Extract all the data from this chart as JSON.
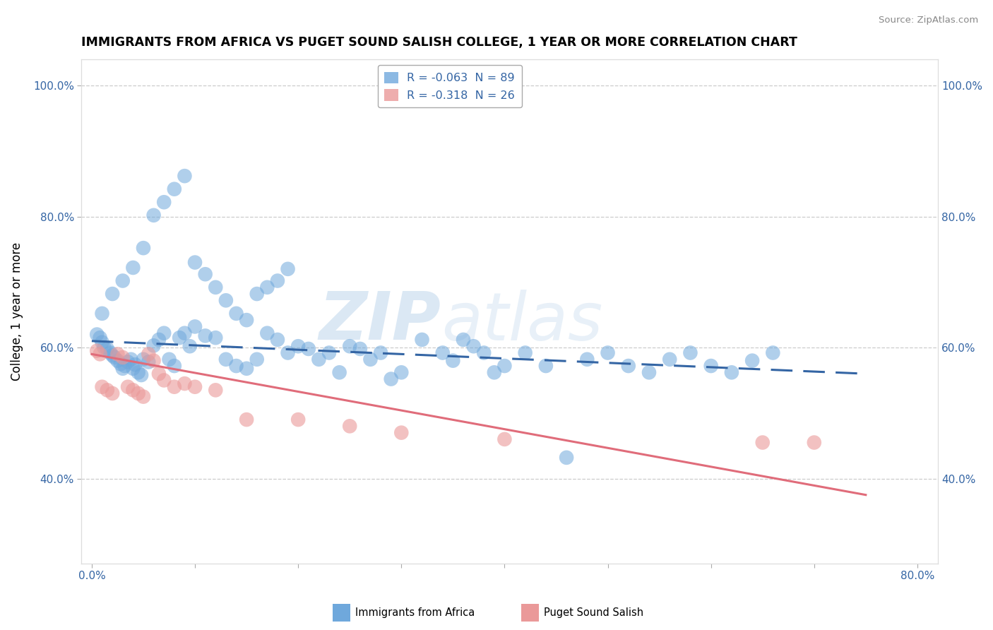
{
  "title": "IMMIGRANTS FROM AFRICA VS PUGET SOUND SALISH COLLEGE, 1 YEAR OR MORE CORRELATION CHART",
  "source": "Source: ZipAtlas.com",
  "ylabel": "College, 1 year or more",
  "xlim": [
    -0.01,
    0.82
  ],
  "ylim": [
    0.27,
    1.04
  ],
  "blue_color": "#6fa8dc",
  "pink_color": "#ea9999",
  "blue_line_color": "#3465a4",
  "pink_line_color": "#e06c7a",
  "legend1_label": "R = -0.063  N = 89",
  "legend2_label": "R = -0.318  N = 26",
  "blue_x": [
    0.005,
    0.008,
    0.01,
    0.012,
    0.015,
    0.018,
    0.02,
    0.022,
    0.025,
    0.028,
    0.03,
    0.032,
    0.035,
    0.038,
    0.04,
    0.042,
    0.045,
    0.048,
    0.05,
    0.055,
    0.06,
    0.065,
    0.07,
    0.075,
    0.08,
    0.085,
    0.09,
    0.095,
    0.1,
    0.11,
    0.12,
    0.13,
    0.14,
    0.15,
    0.16,
    0.17,
    0.18,
    0.19,
    0.2,
    0.21,
    0.22,
    0.23,
    0.24,
    0.25,
    0.26,
    0.27,
    0.28,
    0.29,
    0.3,
    0.32,
    0.34,
    0.35,
    0.36,
    0.37,
    0.38,
    0.39,
    0.4,
    0.42,
    0.44,
    0.46,
    0.48,
    0.5,
    0.52,
    0.54,
    0.56,
    0.58,
    0.6,
    0.62,
    0.64,
    0.66,
    0.01,
    0.02,
    0.03,
    0.04,
    0.05,
    0.06,
    0.07,
    0.08,
    0.09,
    0.1,
    0.11,
    0.12,
    0.13,
    0.14,
    0.15,
    0.16,
    0.17,
    0.18,
    0.19
  ],
  "blue_y": [
    0.62,
    0.615,
    0.608,
    0.6,
    0.598,
    0.592,
    0.588,
    0.585,
    0.58,
    0.575,
    0.568,
    0.572,
    0.578,
    0.582,
    0.568,
    0.574,
    0.562,
    0.558,
    0.582,
    0.578,
    0.603,
    0.612,
    0.622,
    0.582,
    0.572,
    0.615,
    0.622,
    0.602,
    0.632,
    0.618,
    0.615,
    0.582,
    0.572,
    0.568,
    0.582,
    0.622,
    0.612,
    0.592,
    0.602,
    0.598,
    0.582,
    0.592,
    0.562,
    0.602,
    0.598,
    0.582,
    0.592,
    0.552,
    0.562,
    0.612,
    0.592,
    0.58,
    0.612,
    0.602,
    0.592,
    0.562,
    0.572,
    0.592,
    0.572,
    0.432,
    0.582,
    0.592,
    0.572,
    0.562,
    0.582,
    0.592,
    0.572,
    0.562,
    0.58,
    0.592,
    0.652,
    0.682,
    0.702,
    0.722,
    0.752,
    0.802,
    0.822,
    0.842,
    0.862,
    0.73,
    0.712,
    0.692,
    0.672,
    0.652,
    0.642,
    0.682,
    0.692,
    0.702,
    0.72
  ],
  "pink_x": [
    0.005,
    0.008,
    0.01,
    0.015,
    0.02,
    0.025,
    0.03,
    0.035,
    0.04,
    0.045,
    0.05,
    0.055,
    0.06,
    0.065,
    0.07,
    0.08,
    0.09,
    0.1,
    0.12,
    0.15,
    0.2,
    0.25,
    0.3,
    0.4,
    0.65,
    0.7
  ],
  "pink_y": [
    0.595,
    0.59,
    0.54,
    0.535,
    0.53,
    0.59,
    0.585,
    0.54,
    0.535,
    0.53,
    0.525,
    0.59,
    0.58,
    0.56,
    0.55,
    0.54,
    0.545,
    0.54,
    0.535,
    0.49,
    0.49,
    0.48,
    0.47,
    0.46,
    0.455,
    0.455
  ],
  "blue_trend_x": [
    0.0,
    0.75
  ],
  "blue_trend_y": [
    0.61,
    0.56
  ],
  "pink_trend_x": [
    0.0,
    0.75
  ],
  "pink_trend_y": [
    0.59,
    0.375
  ],
  "ytick_vals": [
    0.4,
    0.6,
    0.8,
    1.0
  ],
  "ytick_labels": [
    "40.0%",
    "60.0%",
    "80.0%",
    "100.0%"
  ],
  "xtick_vals": [
    0.0,
    0.1,
    0.2,
    0.3,
    0.4,
    0.5,
    0.6,
    0.7,
    0.8
  ]
}
